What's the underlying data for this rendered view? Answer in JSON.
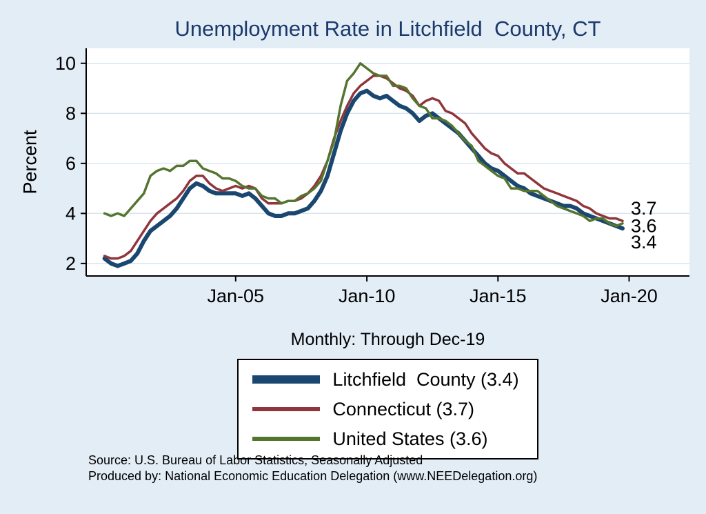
{
  "title": "Unemployment Rate in Litchfield  County, CT",
  "subtitle": "Monthly: Through Dec-19",
  "ylabel": "Percent",
  "notes": [
    "Source: U.S. Bureau of Labor Statistics, Seasonally Adjusted",
    "Produced by: National Economic Education Delegation (www.NEEDelegation.org)"
  ],
  "colors": {
    "background": "#e3edf6",
    "plot_background": "#ffffff",
    "grid": "#d6e4f0",
    "axis": "#000000",
    "title": "#1b3a6b",
    "navy": "#1a476f",
    "maroon": "#90353b",
    "green": "#55752f"
  },
  "legend": [
    {
      "label": "Litchfield  County (3.4)",
      "color": "#1a476f",
      "thickness": 12
    },
    {
      "label": "Connecticut (3.7)",
      "color": "#90353b",
      "thickness": 6
    },
    {
      "label": "United States (3.6)",
      "color": "#55752f",
      "thickness": 6
    }
  ],
  "end_labels": [
    {
      "text": "3.7",
      "at": 4.2
    },
    {
      "text": "3.6",
      "at": 3.5
    },
    {
      "text": "3.4",
      "at": 2.85
    }
  ],
  "chart_data": {
    "type": "line",
    "title": "Unemployment Rate in Litchfield  County, CT",
    "xlabel": "",
    "ylabel": "Percent",
    "grid": true,
    "legend_position": "below",
    "xlim": [
      1999.3,
      2022.3
    ],
    "ylim": [
      1.5,
      10.6
    ],
    "x_start_year": 2000.0,
    "x_step_years": 0.25,
    "x_ticks": [
      {
        "year": 2005,
        "label": "Jan-05"
      },
      {
        "year": 2010,
        "label": "Jan-10"
      },
      {
        "year": 2015,
        "label": "Jan-15"
      },
      {
        "year": 2020,
        "label": "Jan-20"
      }
    ],
    "y_ticks": [
      2,
      4,
      6,
      8,
      10
    ],
    "series": [
      {
        "name": "Litchfield  County (3.4)",
        "color": "#1a476f",
        "width": 6,
        "values": [
          2.2,
          2.0,
          1.9,
          2.0,
          2.1,
          2.4,
          2.9,
          3.3,
          3.5,
          3.7,
          3.9,
          4.2,
          4.6,
          5.0,
          5.2,
          5.1,
          4.9,
          4.8,
          4.8,
          4.8,
          4.8,
          4.7,
          4.8,
          4.6,
          4.3,
          4.0,
          3.9,
          3.9,
          4.0,
          4.0,
          4.1,
          4.2,
          4.5,
          4.9,
          5.5,
          6.4,
          7.3,
          8.0,
          8.5,
          8.8,
          8.9,
          8.7,
          8.6,
          8.7,
          8.5,
          8.3,
          8.2,
          8.0,
          7.7,
          7.9,
          8.0,
          7.8,
          7.6,
          7.4,
          7.2,
          6.9,
          6.6,
          6.3,
          6.0,
          5.8,
          5.7,
          5.5,
          5.3,
          5.1,
          5.0,
          4.8,
          4.7,
          4.6,
          4.5,
          4.4,
          4.3,
          4.3,
          4.2,
          4.0,
          3.9,
          3.8,
          3.7,
          3.6,
          3.5,
          3.4
        ]
      },
      {
        "name": "Connecticut (3.7)",
        "color": "#90353b",
        "width": 3.5,
        "values": [
          2.3,
          2.2,
          2.2,
          2.3,
          2.5,
          2.9,
          3.3,
          3.7,
          4.0,
          4.2,
          4.4,
          4.6,
          4.9,
          5.3,
          5.5,
          5.5,
          5.2,
          5.0,
          4.9,
          5.0,
          5.1,
          5.0,
          5.1,
          5.0,
          4.6,
          4.4,
          4.4,
          4.4,
          4.5,
          4.5,
          4.6,
          4.8,
          5.1,
          5.5,
          6.1,
          7.0,
          7.7,
          8.3,
          8.8,
          9.1,
          9.3,
          9.5,
          9.5,
          9.4,
          9.2,
          9.0,
          8.9,
          8.7,
          8.3,
          8.5,
          8.6,
          8.5,
          8.1,
          8.0,
          7.8,
          7.6,
          7.2,
          6.9,
          6.6,
          6.4,
          6.3,
          6.0,
          5.8,
          5.6,
          5.6,
          5.4,
          5.2,
          5.0,
          4.9,
          4.8,
          4.7,
          4.6,
          4.5,
          4.3,
          4.2,
          4.0,
          3.9,
          3.8,
          3.8,
          3.7
        ]
      },
      {
        "name": "United States (3.6)",
        "color": "#55752f",
        "width": 3.5,
        "values": [
          4.0,
          3.9,
          4.0,
          3.9,
          4.2,
          4.5,
          4.8,
          5.5,
          5.7,
          5.8,
          5.7,
          5.9,
          5.9,
          6.1,
          6.1,
          5.8,
          5.7,
          5.6,
          5.4,
          5.4,
          5.3,
          5.1,
          5.0,
          5.0,
          4.7,
          4.6,
          4.6,
          4.4,
          4.5,
          4.5,
          4.7,
          4.8,
          5.0,
          5.3,
          6.1,
          6.9,
          8.3,
          9.3,
          9.6,
          10.0,
          9.8,
          9.6,
          9.5,
          9.5,
          9.1,
          9.1,
          9.0,
          8.6,
          8.3,
          8.2,
          7.8,
          7.8,
          7.7,
          7.5,
          7.2,
          6.9,
          6.7,
          6.1,
          5.9,
          5.7,
          5.5,
          5.4,
          5.0,
          5.0,
          4.9,
          4.9,
          4.9,
          4.7,
          4.5,
          4.3,
          4.2,
          4.1,
          4.0,
          3.9,
          3.7,
          3.8,
          3.8,
          3.6,
          3.5,
          3.6
        ]
      }
    ]
  }
}
